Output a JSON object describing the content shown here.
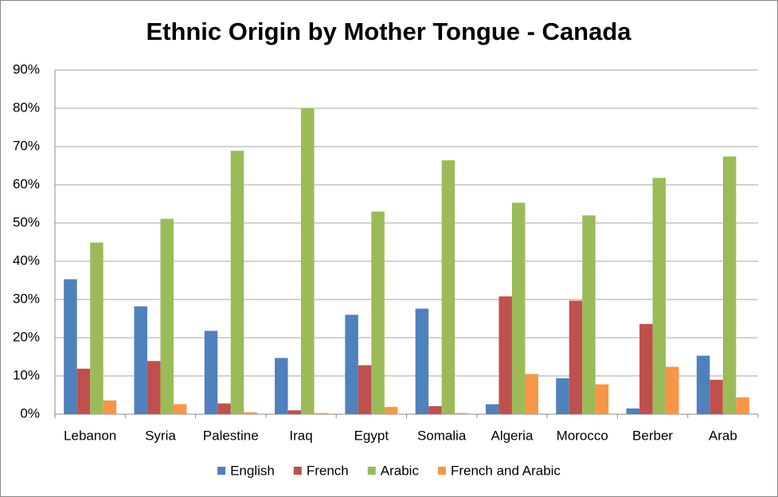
{
  "chart_data": {
    "type": "bar",
    "title": "Ethnic Origin by Mother Tongue - Canada",
    "categories": [
      "Lebanon",
      "Syria",
      "Palestine",
      "Iraq",
      "Egypt",
      "Somalia",
      "Algeria",
      "Morocco",
      "Berber",
      "Arab"
    ],
    "series": [
      {
        "name": "English",
        "color": "#4f81bd",
        "values": [
          35.3,
          28.2,
          21.8,
          14.7,
          26,
          27.6,
          2.6,
          9.4,
          1.5,
          15.3
        ]
      },
      {
        "name": "French",
        "color": "#c0504d",
        "values": [
          11.9,
          13.9,
          2.8,
          1,
          12.8,
          2.1,
          30.8,
          29.7,
          23.6,
          9
        ]
      },
      {
        "name": "Arabic",
        "color": "#9bbb59",
        "values": [
          44.9,
          51.1,
          68.9,
          80,
          53,
          66.4,
          55.3,
          52,
          61.8,
          67.4
        ]
      },
      {
        "name": "French and Arabic",
        "color": "#f79646",
        "values": [
          3.6,
          2.6,
          0.5,
          0.3,
          1.9,
          0.3,
          10.5,
          7.8,
          12.4,
          4.4
        ]
      }
    ],
    "ylim": [
      0,
      90
    ],
    "yticks": [
      {
        "value": 0,
        "label": "0%"
      },
      {
        "value": 10,
        "label": "10%"
      },
      {
        "value": 20,
        "label": "20%"
      },
      {
        "value": 30,
        "label": "30%"
      },
      {
        "value": 40,
        "label": "40%"
      },
      {
        "value": 50,
        "label": "50%"
      },
      {
        "value": 60,
        "label": "60%"
      },
      {
        "value": 70,
        "label": "70%"
      },
      {
        "value": 80,
        "label": "80%"
      },
      {
        "value": 90,
        "label": "90%"
      }
    ],
    "grid": true,
    "legend": "bottom"
  }
}
